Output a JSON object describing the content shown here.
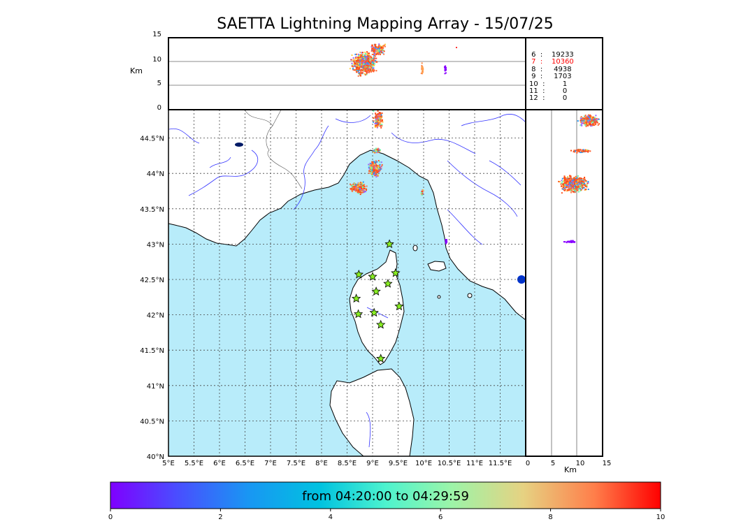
{
  "title": "SAETTA Lightning Mapping Array - 15/07/25",
  "top_panel": {
    "ylabel": "Km",
    "yticks": [
      "15",
      "10",
      "5",
      "0"
    ]
  },
  "right_panel": {
    "xlabel": "Km",
    "xticks": [
      "0",
      "5",
      "10",
      "15"
    ]
  },
  "map": {
    "lon_ticks": [
      "5°E",
      "5.5°E",
      "6°E",
      "6.5°E",
      "7°E",
      "7.5°E",
      "8°E",
      "8.5°E",
      "9°E",
      "9.5°E",
      "10°E",
      "10.5°E",
      "11°E",
      "11.5°E"
    ],
    "lat_ticks": [
      "44.5°N",
      "44°N",
      "43.5°N",
      "43°N",
      "42.5°N",
      "42°N",
      "41.5°N",
      "41°N",
      "40.5°N",
      "40°N"
    ],
    "sea_color": "#b8ecfa",
    "land_color": "#ffffff",
    "river_color": "#3333ff",
    "station_color": "#88ee22",
    "stations": [
      {
        "lon": 9.33,
        "lat": 43.0
      },
      {
        "lon": 8.73,
        "lat": 42.57
      },
      {
        "lon": 9.0,
        "lat": 42.54
      },
      {
        "lon": 9.45,
        "lat": 42.59
      },
      {
        "lon": 9.3,
        "lat": 42.44
      },
      {
        "lon": 9.07,
        "lat": 42.33
      },
      {
        "lon": 8.68,
        "lat": 42.23
      },
      {
        "lon": 9.52,
        "lat": 42.12
      },
      {
        "lon": 8.72,
        "lat": 42.01
      },
      {
        "lon": 9.03,
        "lat": 42.03
      },
      {
        "lon": 9.16,
        "lat": 41.86
      },
      {
        "lon": 9.16,
        "lat": 41.38
      }
    ]
  },
  "counts": [
    {
      "label": " 6  :    19233",
      "color": "#000000"
    },
    {
      "label": " 7  :    10360",
      "color": "#ff0000"
    },
    {
      "label": " 8  :     4938",
      "color": "#000000"
    },
    {
      "label": " 9  :     1703",
      "color": "#000000"
    },
    {
      "label": "10  :        1",
      "color": "#000000"
    },
    {
      "label": "11  :        0",
      "color": "#000000"
    },
    {
      "label": "12  :        0",
      "color": "#000000"
    }
  ],
  "colorbar": {
    "label": "from 04:20:00 to 04:29:59",
    "ticks": [
      "0",
      "2",
      "4",
      "6",
      "8",
      "10"
    ]
  }
}
